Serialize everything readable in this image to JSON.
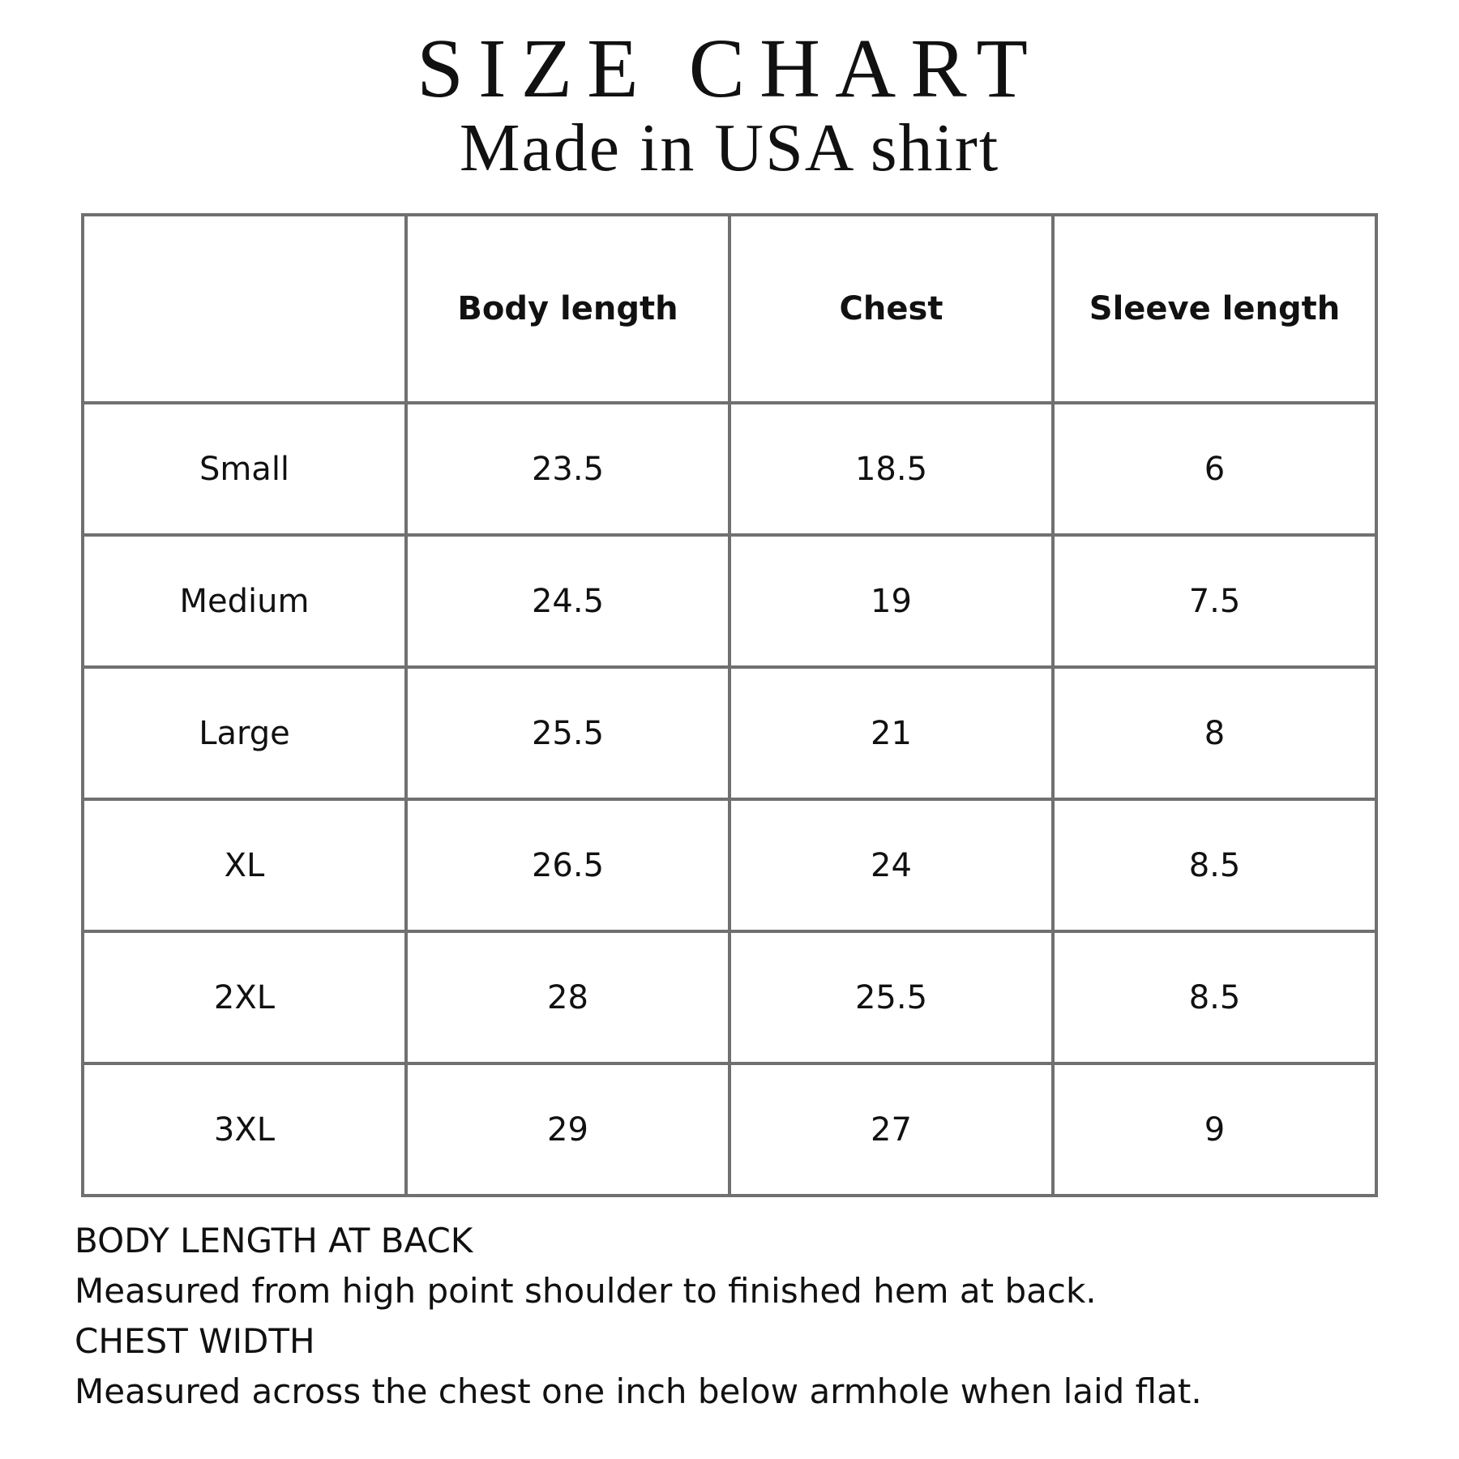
{
  "title": "SIZE CHART",
  "subtitle": "Made in USA shirt",
  "table": {
    "headers": [
      "",
      "Body length",
      "Chest",
      "Sleeve length"
    ],
    "rows": [
      [
        "Small",
        "23.5",
        "18.5",
        "6"
      ],
      [
        "Medium",
        "24.5",
        "19",
        "7.5"
      ],
      [
        "Large",
        "25.5",
        "21",
        "8"
      ],
      [
        "XL",
        "26.5",
        "24",
        "8.5"
      ],
      [
        "2XL",
        "28",
        "25.5",
        "8.5"
      ],
      [
        "3XL",
        "29",
        "27",
        "9"
      ]
    ]
  },
  "notes": [
    "BODY LENGTH AT BACK",
    "Measured from high point shoulder to finished hem at back.",
    "CHEST WIDTH",
    "Measured across the chest one inch below armhole when laid flat."
  ],
  "colors": {
    "border": "#707070",
    "text": "#111111"
  }
}
